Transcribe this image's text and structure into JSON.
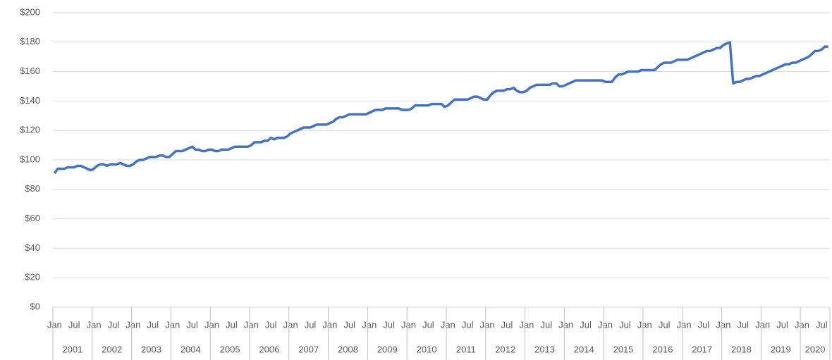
{
  "chart_data": {
    "type": "line",
    "categories": [
      "Jan",
      null,
      null,
      null,
      null,
      null,
      "Jul",
      null,
      null,
      null,
      null,
      null,
      "Jan",
      null,
      null,
      null,
      null,
      null,
      "Jul",
      null,
      null,
      null,
      null,
      null,
      "Jan",
      null,
      null,
      null,
      null,
      null,
      "Jul",
      null,
      null,
      null,
      null,
      null,
      "Jan",
      null,
      null,
      null,
      null,
      null,
      "Jul",
      null,
      null,
      null,
      null,
      null,
      "Jan",
      null,
      null,
      null,
      null,
      null,
      "Jul",
      null,
      null,
      null,
      null,
      null,
      "Jan",
      null,
      null,
      null,
      null,
      null,
      "Jul",
      null,
      null,
      null,
      null,
      null,
      "Jan",
      null,
      null,
      null,
      null,
      null,
      "Jul",
      null,
      null,
      null,
      null,
      null,
      "Jan",
      null,
      null,
      null,
      null,
      null,
      "Jul",
      null,
      null,
      null,
      null,
      null,
      "Jan",
      null,
      null,
      null,
      null,
      null,
      "Jul",
      null,
      null,
      null,
      null,
      null,
      "Jan",
      null,
      null,
      null,
      null,
      null,
      "Jul",
      null,
      null,
      null,
      null,
      null,
      "Jan",
      null,
      null,
      null,
      null,
      null,
      "Jul",
      null,
      null,
      null,
      null,
      null,
      "Jan",
      null,
      null,
      null,
      null,
      null,
      "Jul",
      null,
      null,
      null,
      null,
      null,
      "Jan",
      null,
      null,
      null,
      null,
      null,
      "Jul",
      null,
      null,
      null,
      null,
      null,
      "Jan",
      null,
      null,
      null,
      null,
      null,
      "Jul",
      null,
      null,
      null,
      null,
      null,
      "Jan",
      null,
      null,
      null,
      null,
      null,
      "Jul",
      null,
      null,
      null,
      null,
      null,
      "Jan",
      null,
      null,
      null,
      null,
      null,
      "Jul",
      null,
      null,
      null,
      null,
      null,
      "Jan",
      null,
      null,
      null,
      null,
      null,
      "Jul",
      null,
      null,
      null,
      null,
      null,
      "Jan",
      null,
      null,
      null,
      null,
      null,
      "Jul",
      null,
      null,
      null,
      null,
      null,
      "Jan",
      null,
      null,
      null,
      null,
      null,
      "Jul",
      null,
      null,
      null,
      null,
      null,
      "Jan",
      null,
      null,
      null,
      null,
      null,
      "Jul",
      null,
      null
    ],
    "years": [
      "2001",
      "2002",
      "2003",
      "2004",
      "2005",
      "2006",
      "2007",
      "2008",
      "2009",
      "2010",
      "2011",
      "2012",
      "2013",
      "2014",
      "2015",
      "2016",
      "2017",
      "2018",
      "2019",
      "2020"
    ],
    "series": [
      {
        "color": "#4472c4",
        "values": [
          91,
          94,
          94,
          94,
          95,
          95,
          95,
          96,
          96,
          95,
          94,
          93,
          94,
          96,
          97,
          97,
          96,
          97,
          97,
          97,
          98,
          97,
          96,
          96,
          97,
          99,
          100,
          100,
          101,
          102,
          102,
          102,
          103,
          103,
          102,
          102,
          104,
          106,
          106,
          106,
          107,
          108,
          109,
          107,
          107,
          106,
          106,
          107,
          107,
          106,
          106,
          107,
          107,
          107,
          108,
          109,
          109,
          109,
          109,
          109,
          110,
          112,
          112,
          112,
          113,
          113,
          115,
          114,
          115,
          115,
          115,
          116,
          118,
          119,
          120,
          121,
          122,
          122,
          122,
          123,
          124,
          124,
          124,
          124,
          125,
          126,
          128,
          129,
          129,
          130,
          131,
          131,
          131,
          131,
          131,
          131,
          132,
          133,
          134,
          134,
          134,
          135,
          135,
          135,
          135,
          135,
          134,
          134,
          134,
          135,
          137,
          137,
          137,
          137,
          137,
          138,
          138,
          138,
          138,
          136,
          137,
          139,
          141,
          141,
          141,
          141,
          141,
          142,
          143,
          143,
          142,
          141,
          141,
          144,
          146,
          147,
          147,
          147,
          148,
          148,
          149,
          147,
          146,
          146,
          147,
          149,
          150,
          151,
          151,
          151,
          151,
          151,
          152,
          152,
          150,
          150,
          151,
          152,
          153,
          154,
          154,
          154,
          154,
          154,
          154,
          154,
          154,
          154,
          153,
          153,
          153,
          156,
          158,
          158,
          159,
          160,
          160,
          160,
          160,
          161,
          161,
          161,
          161,
          161,
          163,
          165,
          166,
          166,
          166,
          167,
          168,
          168,
          168,
          168,
          169,
          170,
          171,
          172,
          173,
          174,
          174,
          175,
          176,
          176,
          178,
          179,
          180,
          152,
          153,
          153,
          154,
          155,
          155,
          156,
          157,
          157,
          158,
          159,
          160,
          161,
          162,
          163,
          164,
          165,
          165,
          166,
          166,
          167,
          168,
          169,
          170,
          172,
          174,
          174,
          175,
          177,
          177
        ]
      }
    ],
    "ylim": [
      0,
      200
    ],
    "yticks": [
      {
        "value": 0,
        "label": "$0"
      },
      {
        "value": 20,
        "label": "$20"
      },
      {
        "value": 40,
        "label": "$40"
      },
      {
        "value": 60,
        "label": "$60"
      },
      {
        "value": 80,
        "label": "$80"
      },
      {
        "value": 100,
        "label": "$100"
      },
      {
        "value": 120,
        "label": "$120"
      },
      {
        "value": 140,
        "label": "$140"
      },
      {
        "value": 160,
        "label": "$160"
      },
      {
        "value": 180,
        "label": "$180"
      },
      {
        "value": 200,
        "label": "$200"
      }
    ],
    "grid": true
  }
}
